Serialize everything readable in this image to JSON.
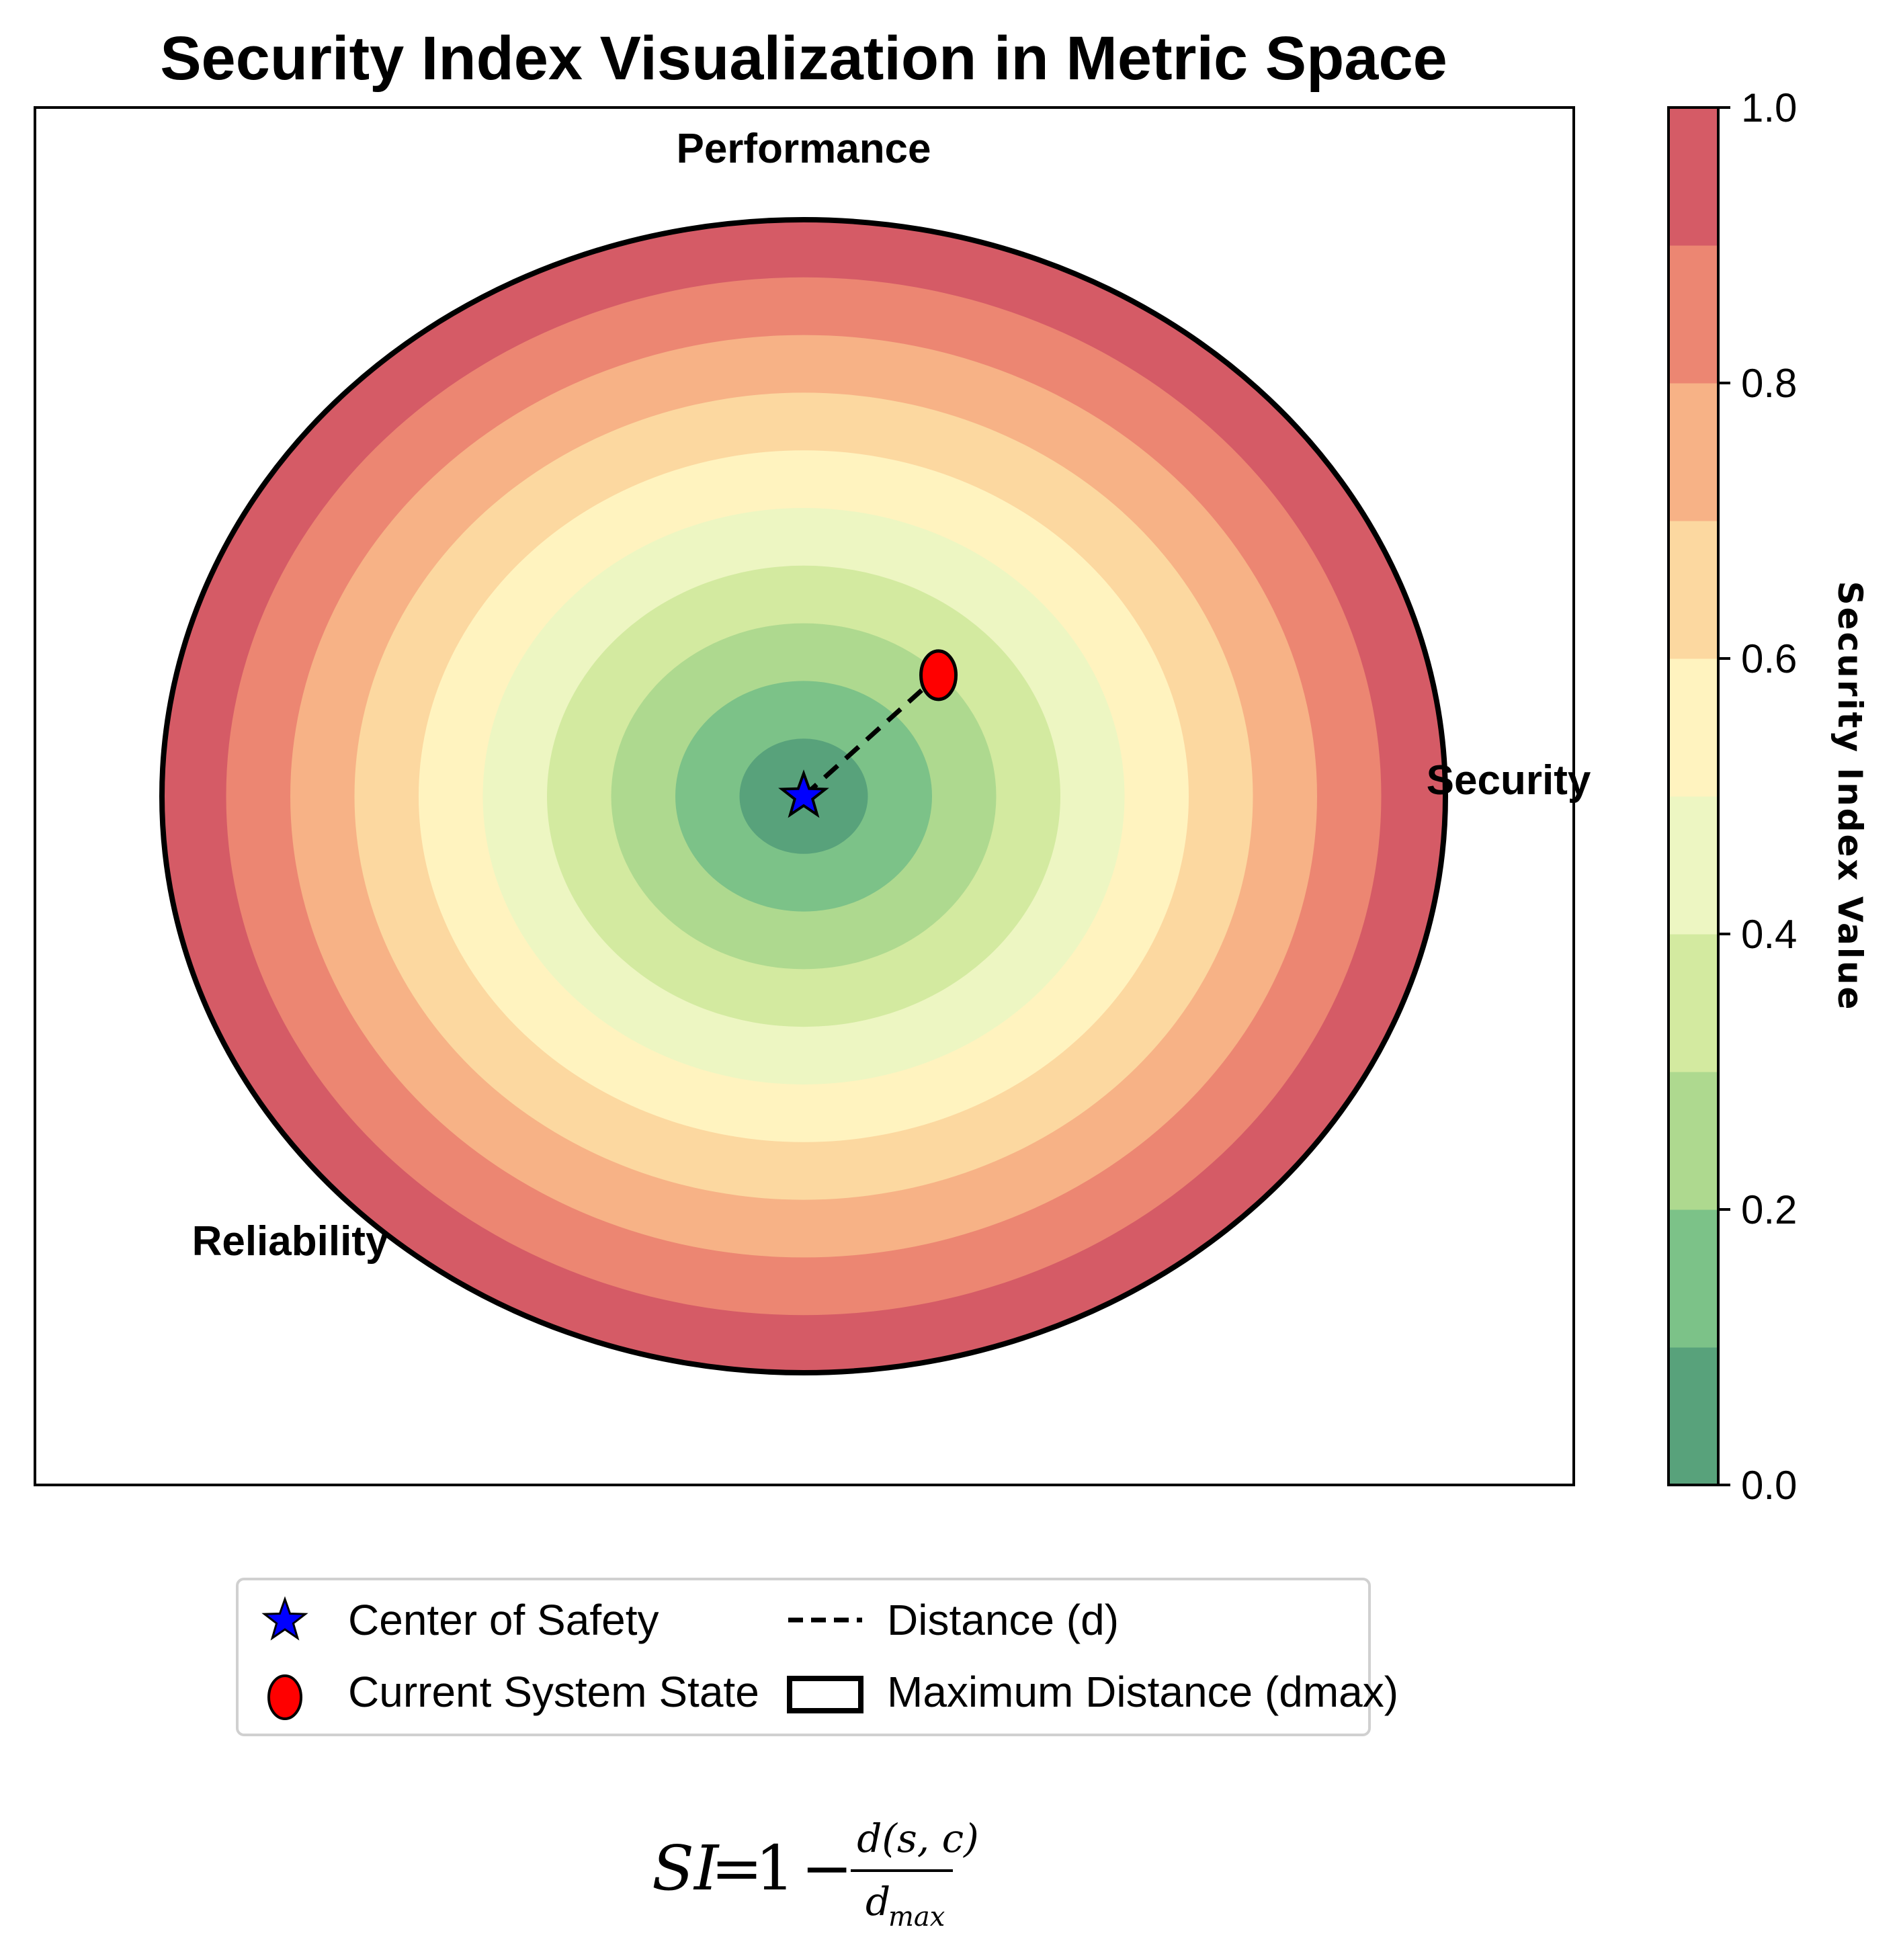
{
  "chart_data": {
    "type": "contour",
    "title": "Security Index Visualization in Metric Space",
    "region_labels": {
      "top": "Performance",
      "right": "Security",
      "bottom_left": "Reliability"
    },
    "levels": [
      0.0,
      0.1,
      0.2,
      0.3,
      0.4,
      0.5,
      0.6,
      0.7,
      0.8,
      0.9,
      1.0
    ],
    "level_colors": [
      "#58a27b",
      "#7cc288",
      "#aed98f",
      "#d3eaa0",
      "#edf6c2",
      "#fff3bf",
      "#fcd8a0",
      "#f7b286",
      "#ec8672",
      "#d55b66"
    ],
    "center_of_safety": {
      "x": 0.0,
      "y": 0.0
    },
    "current_system_state": {
      "x": 0.21,
      "y": 0.21
    },
    "d_max": 1.0,
    "colorbar": {
      "label": "Security Index Value",
      "ticks": [
        "0.0",
        "0.2",
        "0.4",
        "0.6",
        "0.8",
        "1.0"
      ],
      "range": [
        0.0,
        1.0
      ]
    },
    "legend": [
      {
        "label": "Center of Safety",
        "marker": "star-icon",
        "color": "#0000ff"
      },
      {
        "label": "Current System State",
        "marker": "circle",
        "color": "#ff0000"
      },
      {
        "label": "Distance (d)",
        "marker": "dashed-line",
        "color": "#000000"
      },
      {
        "label": "Maximum Distance (dmax)",
        "marker": "outline-box",
        "color": "#000000"
      }
    ],
    "formula": {
      "lhs": "SI",
      "equals": "=",
      "one": "1",
      "minus": "−",
      "numerator": "d(s, c)",
      "denominator_base": "d",
      "denominator_sub": "max"
    }
  }
}
